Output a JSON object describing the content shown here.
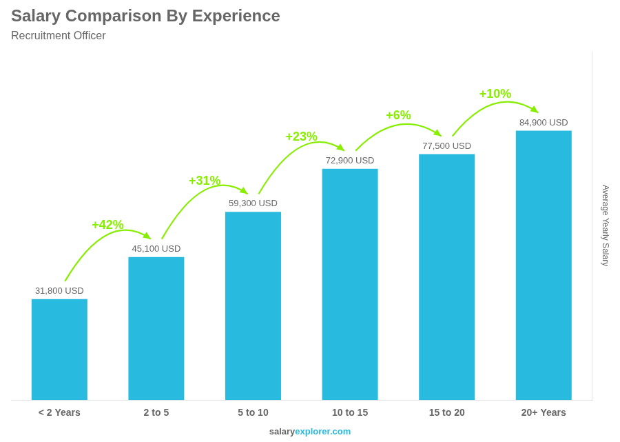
{
  "chart_data": {
    "type": "bar",
    "title": "Salary Comparison By Experience",
    "subtitle": "Recruitment Officer",
    "ylabel": "Average Yearly Salary",
    "footer": [
      "salary",
      "explorer.com"
    ],
    "categories": [
      "< 2 Years",
      "2 to 5",
      "5 to 10",
      "10 to 15",
      "15 to 20",
      "20+ Years"
    ],
    "values": [
      31800,
      45100,
      59300,
      72900,
      77500,
      84900
    ],
    "value_labels": [
      "31,800 USD",
      "45,100 USD",
      "59,300 USD",
      "72,900 USD",
      "77,500 USD",
      "84,900 USD"
    ],
    "data_labels": true,
    "color": "#29BBDF",
    "annotations": {
      "texts": [
        "+42%",
        "+31%",
        "+23%",
        "+6%",
        "+10%"
      ],
      "color": "#88EE00"
    },
    "ylim": [
      0,
      110000
    ],
    "yticks": [],
    "tick_labels": "x",
    "grid": false
  }
}
